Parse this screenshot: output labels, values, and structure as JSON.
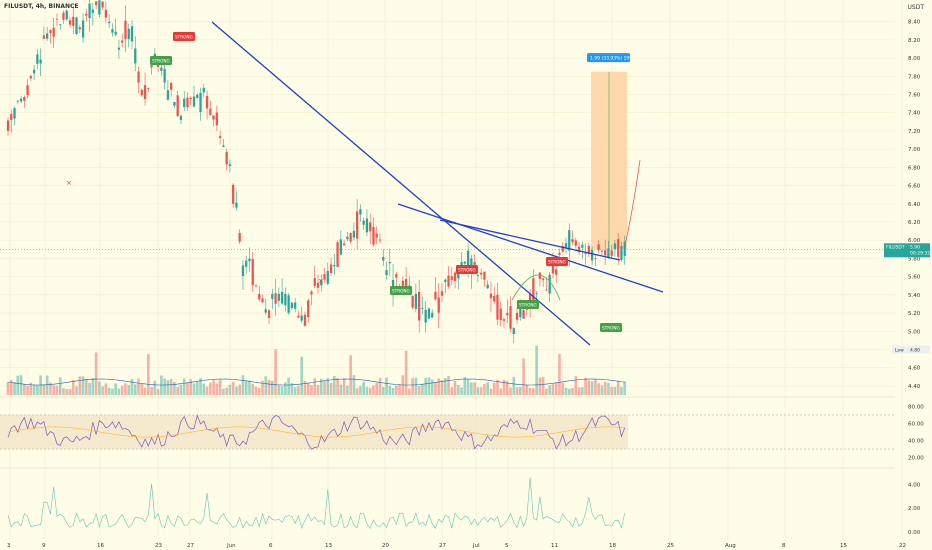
{
  "header": {
    "symbol_line": "FILUSDT, 4h, BINANCE",
    "currency": "USDT"
  },
  "price_axis": {
    "ticks": [
      "8.40",
      "8.20",
      "8.00",
      "7.80",
      "7.60",
      "7.40",
      "7.20",
      "7.00",
      "6.80",
      "6.60",
      "6.40",
      "6.20",
      "6.00",
      "5.80",
      "5.60",
      "5.40",
      "5.20",
      "5.00",
      "4.80",
      "4.60",
      "4.40"
    ]
  },
  "rsi_axis": {
    "ticks": [
      "80.00",
      "60.00",
      "40.00",
      "20.00"
    ]
  },
  "osc_axis": {
    "ticks": [
      "4.00",
      "2.00",
      "0.00"
    ]
  },
  "time_axis": {
    "ticks": [
      "3",
      "9",
      "16",
      "23",
      "27",
      "Jun",
      "6",
      "13",
      "20",
      "27",
      "Jul",
      "5",
      "11",
      "18",
      "25",
      "Aug",
      "8",
      "15",
      "22"
    ]
  },
  "price_tag": {
    "symbol": "FILUSDT",
    "price": "5.90",
    "countdown": "00:29:32"
  },
  "low_tag": {
    "label": "Low",
    "value": "4.80"
  },
  "measure_label": "1.99 (33.93%) 199",
  "signals": [
    {
      "text": "STRONG",
      "type": "sell"
    },
    {
      "text": "STRONG",
      "type": "buy"
    },
    {
      "text": "STRONG",
      "type": "buy"
    },
    {
      "text": "STRONG",
      "type": "sell"
    },
    {
      "text": "STRONG",
      "type": "buy"
    },
    {
      "text": "STRONG",
      "type": "sell"
    },
    {
      "text": "STRONG",
      "type": "buy"
    }
  ],
  "colors": {
    "up": "#26a69a",
    "down": "#ef5350",
    "trendline": "#1f3fd0",
    "rsi_line": "#7e57c2",
    "rsi_band": "#f3e5c7",
    "measure": "#ffcc99",
    "osc": "#5fc8b7",
    "signal_sell": "#e53935",
    "signal_buy": "#43a047"
  },
  "chart_data": {
    "type": "candlestick",
    "timeframe": "4h",
    "ylim": [
      4.3,
      8.55
    ],
    "price_path": [
      [
        0.0,
        7.3
      ],
      [
        0.03,
        7.6
      ],
      [
        0.06,
        8.2
      ],
      [
        0.09,
        8.5
      ],
      [
        0.12,
        8.3
      ],
      [
        0.15,
        8.6
      ],
      [
        0.18,
        8.2
      ],
      [
        0.2,
        8.3
      ],
      [
        0.22,
        7.5
      ],
      [
        0.24,
        8.1
      ],
      [
        0.26,
        7.7
      ],
      [
        0.28,
        7.4
      ],
      [
        0.3,
        7.6
      ],
      [
        0.32,
        7.5
      ],
      [
        0.34,
        7.3
      ],
      [
        0.36,
        6.8
      ],
      [
        0.38,
        5.8
      ],
      [
        0.4,
        5.6
      ],
      [
        0.42,
        5.2
      ],
      [
        0.44,
        5.4
      ],
      [
        0.46,
        5.3
      ],
      [
        0.48,
        5.1
      ],
      [
        0.5,
        5.5
      ],
      [
        0.52,
        5.6
      ],
      [
        0.54,
        5.9
      ],
      [
        0.56,
        6.1
      ],
      [
        0.58,
        6.3
      ],
      [
        0.6,
        6.0
      ],
      [
        0.62,
        5.6
      ],
      [
        0.64,
        5.5
      ],
      [
        0.66,
        5.3
      ],
      [
        0.68,
        5.2
      ],
      [
        0.7,
        5.4
      ],
      [
        0.72,
        5.6
      ],
      [
        0.74,
        5.8
      ],
      [
        0.76,
        5.7
      ],
      [
        0.78,
        5.4
      ],
      [
        0.8,
        5.2
      ],
      [
        0.82,
        5.1
      ],
      [
        0.84,
        5.3
      ],
      [
        0.86,
        5.5
      ],
      [
        0.88,
        5.6
      ],
      [
        0.9,
        5.9
      ],
      [
        0.92,
        6.0
      ],
      [
        0.94,
        5.85
      ],
      [
        1.0,
        5.9
      ]
    ],
    "last_price": 5.9,
    "low": 4.8,
    "rsi_levels": [
      70,
      30
    ]
  }
}
